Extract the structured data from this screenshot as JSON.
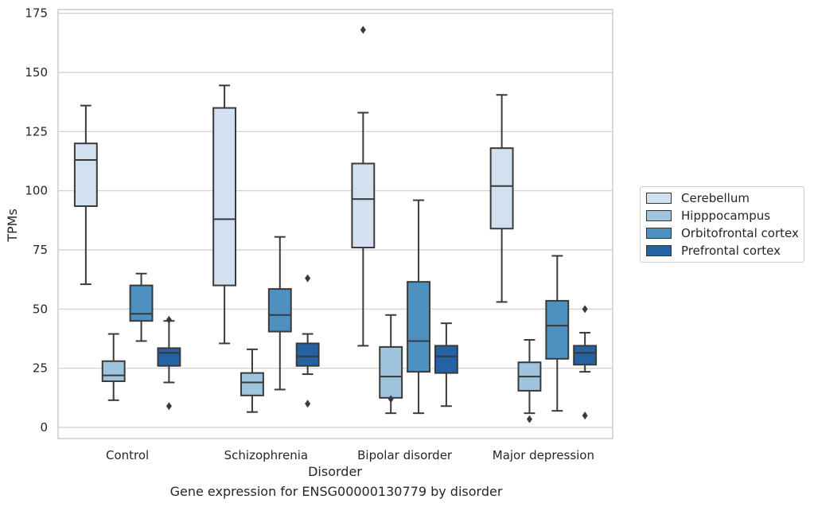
{
  "chart_data": {
    "type": "box",
    "xlabel": "Disorder",
    "ylabel": "TPMs",
    "caption": "Gene expression for ENSG00000130779 by disorder",
    "ylim": [
      -5,
      176
    ],
    "yticks": [
      0,
      25,
      50,
      75,
      100,
      125,
      150,
      175
    ],
    "grid": "horizontal",
    "legend_position": "right, outside plot",
    "categories": [
      "Control",
      "Schizophrenia",
      "Bipolar disorder",
      "Major depression"
    ],
    "series": [
      {
        "name": "Cerebellum",
        "color": "#d1e1f0",
        "boxes": [
          {
            "whislo": 60.5,
            "q1": 93.5,
            "med": 113,
            "q3": 120,
            "whishi": 136,
            "fliers": []
          },
          {
            "whislo": 35.5,
            "q1": 60,
            "med": 88,
            "q3": 135,
            "whishi": 144.5,
            "fliers": []
          },
          {
            "whislo": 34.5,
            "q1": 76,
            "med": 96.5,
            "q3": 111.5,
            "whishi": 133,
            "fliers": [
              168
            ]
          },
          {
            "whislo": 53,
            "q1": 84,
            "med": 102,
            "q3": 118,
            "whishi": 140.5,
            "fliers": []
          }
        ]
      },
      {
        "name": "Hipppocampus",
        "color": "#9fc4de",
        "boxes": [
          {
            "whislo": 11.5,
            "q1": 19.5,
            "med": 22,
            "q3": 28,
            "whishi": 39.5,
            "fliers": []
          },
          {
            "whislo": 6.5,
            "q1": 13.5,
            "med": 19,
            "q3": 23,
            "whishi": 33,
            "fliers": []
          },
          {
            "whislo": 6,
            "q1": 12.5,
            "med": 21.5,
            "q3": 34,
            "whishi": 47.5,
            "fliers": [
              12
            ]
          },
          {
            "whislo": 6,
            "q1": 15.5,
            "med": 21.5,
            "q3": 27.5,
            "whishi": 37,
            "fliers": [
              3.5
            ]
          }
        ]
      },
      {
        "name": "Orbitofrontal cortex",
        "color": "#4e90c0",
        "boxes": [
          {
            "whislo": 36.5,
            "q1": 45,
            "med": 48,
            "q3": 60,
            "whishi": 65,
            "fliers": []
          },
          {
            "whislo": 16,
            "q1": 40.5,
            "med": 47.5,
            "q3": 58.5,
            "whishi": 80.5,
            "fliers": []
          },
          {
            "whislo": 6,
            "q1": 23.5,
            "med": 36.5,
            "q3": 61.5,
            "whishi": 96,
            "fliers": []
          },
          {
            "whislo": 7,
            "q1": 29,
            "med": 43,
            "q3": 53.5,
            "whishi": 72.5,
            "fliers": []
          }
        ]
      },
      {
        "name": "Prefrontal cortex",
        "color": "#2562a4",
        "boxes": [
          {
            "whislo": 19,
            "q1": 26,
            "med": 31.5,
            "q3": 33.5,
            "whishi": 45,
            "fliers": [
              9,
              45.5
            ]
          },
          {
            "whislo": 22.5,
            "q1": 26,
            "med": 30,
            "q3": 35.5,
            "whishi": 39.5,
            "fliers": [
              10,
              63
            ]
          },
          {
            "whislo": 9,
            "q1": 23,
            "med": 30,
            "q3": 34.5,
            "whishi": 44,
            "fliers": []
          },
          {
            "whislo": 23.5,
            "q1": 26.5,
            "med": 31.5,
            "q3": 34.5,
            "whishi": 40,
            "fliers": [
              5,
              50
            ]
          }
        ]
      }
    ]
  }
}
